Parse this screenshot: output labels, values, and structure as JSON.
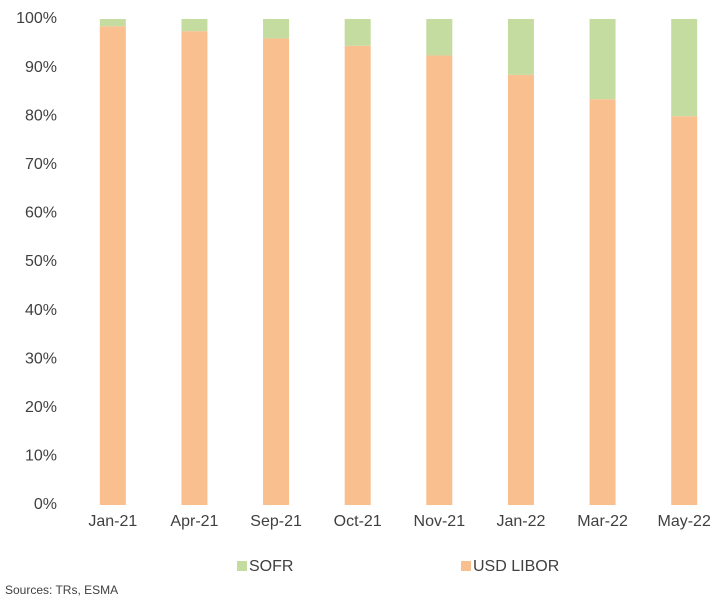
{
  "chart_data": {
    "type": "stacked_bar",
    "categories": [
      "Jan-21",
      "Apr-21",
      "Sep-21",
      "Oct-21",
      "Nov-21",
      "Jan-22",
      "Mar-22",
      "May-22"
    ],
    "series": [
      {
        "name": "SOFR",
        "color": "#c4dc9f",
        "values": [
          1.5,
          2.5,
          4,
          5.5,
          7.5,
          11.5,
          16.5,
          20
        ]
      },
      {
        "name": "USD LIBOR",
        "color": "#f9bf8f",
        "values": [
          98.5,
          97.5,
          96,
          94.5,
          92.5,
          88.5,
          83.5,
          80
        ]
      }
    ],
    "ylim": [
      0,
      100
    ],
    "yticks": [
      {
        "value": 0,
        "label": "0%"
      },
      {
        "value": 10,
        "label": "10%"
      },
      {
        "value": 20,
        "label": "20%"
      },
      {
        "value": 30,
        "label": "30%"
      },
      {
        "value": 40,
        "label": "40%"
      },
      {
        "value": 50,
        "label": "50%"
      },
      {
        "value": 60,
        "label": "60%"
      },
      {
        "value": 70,
        "label": "70%"
      },
      {
        "value": 80,
        "label": "80%"
      },
      {
        "value": 90,
        "label": "90%"
      },
      {
        "value": 100,
        "label": "100%"
      }
    ],
    "grid": false,
    "legend": "bottom",
    "source": "Sources: TRs, ESMA"
  }
}
